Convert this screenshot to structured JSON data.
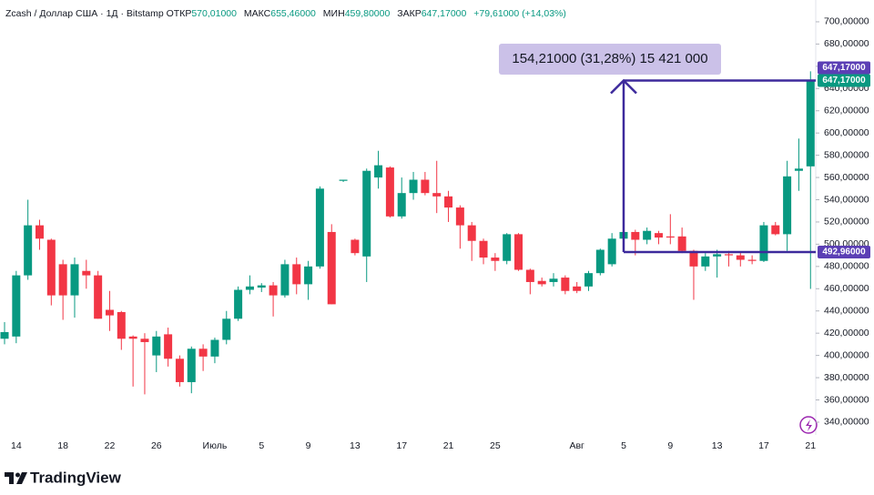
{
  "header": {
    "symbol": "Zcash / Доллар США · 1Д · Bitstamp",
    "open_label": "ОТКР",
    "open": "570,01000",
    "high_label": "МАКС",
    "high": "655,46000",
    "low_label": "МИН",
    "low": "459,80000",
    "close_label": "ЗАКР",
    "close": "647,17000",
    "change": "+79,61000 (+14,03%)"
  },
  "branding": "TradingView",
  "chart_data": {
    "type": "candlestick",
    "categories": [
      null,
      "14",
      null,
      null,
      null,
      "18",
      null,
      null,
      null,
      "22",
      null,
      null,
      null,
      "26",
      null,
      null,
      null,
      null,
      "Июль",
      null,
      null,
      null,
      "5",
      null,
      null,
      null,
      "9",
      null,
      null,
      null,
      "13",
      null,
      null,
      null,
      "17",
      null,
      null,
      null,
      "21",
      null,
      null,
      null,
      "25",
      null,
      null,
      null,
      null,
      null,
      null,
      "Авг",
      null,
      null,
      null,
      "5",
      null,
      null,
      null,
      "9",
      null,
      null,
      null,
      "13",
      null,
      null,
      null,
      "17",
      null,
      null,
      null,
      "21"
    ],
    "open": [
      415,
      417,
      472,
      517,
      504,
      482,
      454,
      476,
      472,
      441,
      439,
      417,
      415,
      400,
      419,
      397,
      376,
      406,
      399,
      414,
      433,
      459,
      461,
      463,
      454,
      482,
      464,
      480,
      511,
      557,
      504,
      489,
      560,
      569,
      525,
      546,
      558,
      546,
      543,
      533,
      517,
      503,
      488,
      485,
      509,
      477,
      467,
      466,
      470,
      462,
      462,
      474,
      482,
      505,
      511,
      504,
      510,
      507,
      507,
      494,
      480,
      489,
      491,
      490,
      486,
      485,
      517,
      509,
      566,
      570.01
    ],
    "high": [
      430,
      476,
      540,
      522,
      505,
      486,
      488,
      486,
      476,
      458,
      440,
      418,
      420,
      422,
      425,
      400,
      408,
      410,
      416,
      440,
      462,
      472,
      465,
      466,
      486,
      488,
      485,
      552,
      518,
      558,
      505,
      568,
      584,
      570,
      560,
      565,
      565,
      575,
      548,
      535,
      520,
      505,
      492,
      510,
      510,
      478,
      470,
      474,
      472,
      466,
      476,
      496,
      510,
      525,
      513,
      515,
      512,
      527,
      515,
      495,
      492,
      495,
      494,
      493,
      490,
      520,
      520,
      575,
      595,
      655.46
    ],
    "low": [
      410,
      411,
      468,
      495,
      445,
      432,
      434,
      460,
      433,
      422,
      405,
      372,
      365,
      385,
      390,
      372,
      366,
      386,
      393,
      410,
      431,
      455,
      457,
      435,
      452,
      455,
      450,
      478,
      446,
      556,
      490,
      466,
      550,
      524,
      523,
      540,
      544,
      528,
      520,
      496,
      485,
      482,
      476,
      482,
      476,
      455,
      462,
      462,
      455,
      456,
      458,
      472,
      480,
      498,
      490,
      500,
      500,
      500,
      492,
      450,
      476,
      470,
      480,
      480,
      482,
      484,
      508,
      494,
      548,
      459.8
    ],
    "close": [
      421,
      472,
      517,
      505,
      454,
      454,
      482,
      472,
      433,
      436,
      415,
      415,
      412,
      417,
      397,
      376,
      406,
      399,
      414,
      433,
      459,
      462,
      463,
      454,
      482,
      464,
      480,
      550,
      446,
      558,
      492,
      566,
      571,
      525,
      546,
      558,
      546,
      543,
      533,
      517,
      503,
      488,
      485,
      509,
      477,
      466,
      464,
      469,
      458,
      458,
      474,
      495,
      505,
      511,
      504,
      512,
      506,
      506,
      494,
      480,
      489,
      491,
      490,
      486,
      485,
      517,
      509,
      561,
      568,
      647.17
    ],
    "up_color": "#089981",
    "down_color": "#f23645",
    "ylim": [
      328.5,
      719.6
    ],
    "yticks": [
      {
        "value": 340,
        "label": "340,00000"
      },
      {
        "value": 360,
        "label": "360,00000"
      },
      {
        "value": 380,
        "label": "380,00000"
      },
      {
        "value": 400,
        "label": "400,00000"
      },
      {
        "value": 420,
        "label": "420,00000"
      },
      {
        "value": 440,
        "label": "440,00000"
      },
      {
        "value": 460,
        "label": "460,00000"
      },
      {
        "value": 480,
        "label": "480,00000"
      },
      {
        "value": 500,
        "label": "500,00000"
      },
      {
        "value": 520,
        "label": "520,00000"
      },
      {
        "value": 540,
        "label": "540,00000"
      },
      {
        "value": 560,
        "label": "560,00000"
      },
      {
        "value": 580,
        "label": "580,00000"
      },
      {
        "value": 600,
        "label": "600,00000"
      },
      {
        "value": 620,
        "label": "620,00000"
      },
      {
        "value": 640,
        "label": "640,00000"
      },
      {
        "value": 660,
        "label": "660,00000"
      },
      {
        "value": 680,
        "label": "680,00000"
      },
      {
        "value": 700,
        "label": "700,00000"
      }
    ],
    "measure": {
      "from": 492.96,
      "to": 647.17,
      "start": "5",
      "label": "154,21000 (31,28%) 15 421 000",
      "color": "#3d2a9c"
    },
    "price_tags": [
      {
        "value": 647.17,
        "label": "647,17000",
        "color": "#5b3fb5",
        "offset": -1
      },
      {
        "value": 647.17,
        "label": "647,17000",
        "color": "#089981",
        "offset": 0
      },
      {
        "value": 492.96,
        "label": "492,96000",
        "color": "#5b3fb5",
        "offset": 0
      }
    ]
  }
}
